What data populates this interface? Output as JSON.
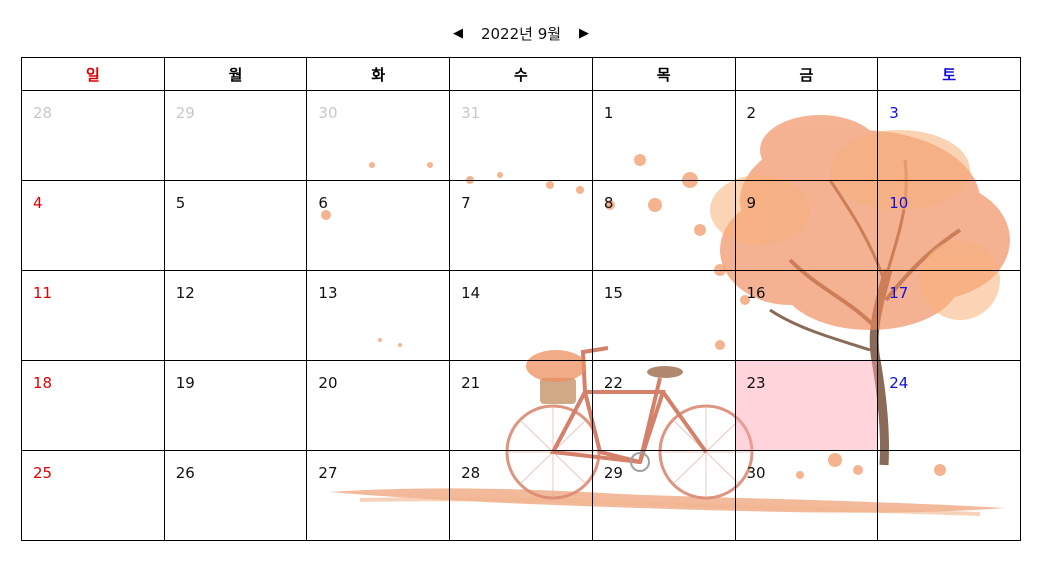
{
  "header": {
    "prev_icon": "prev-triangle-icon",
    "prev_glyph": "◀",
    "title": "2022년 9월",
    "next_icon": "next-triangle-icon",
    "next_glyph": "▶"
  },
  "weekdays": [
    "일",
    "월",
    "화",
    "수",
    "목",
    "금",
    "토"
  ],
  "weeks": [
    [
      "28",
      "29",
      "30",
      "31",
      "1",
      "2",
      "3"
    ],
    [
      "4",
      "5",
      "6",
      "7",
      "8",
      "9",
      "10"
    ],
    [
      "11",
      "12",
      "13",
      "14",
      "15",
      "16",
      "17"
    ],
    [
      "18",
      "19",
      "20",
      "21",
      "22",
      "23",
      "24"
    ],
    [
      "25",
      "26",
      "27",
      "28",
      "29",
      "30",
      ""
    ]
  ],
  "colors": {
    "sunday": "#e00000",
    "saturday": "#1010d8",
    "other_month": "#c8c8c8",
    "highlight": "#ffb0bd",
    "background_art": "autumn tree and bicycle illustration"
  }
}
